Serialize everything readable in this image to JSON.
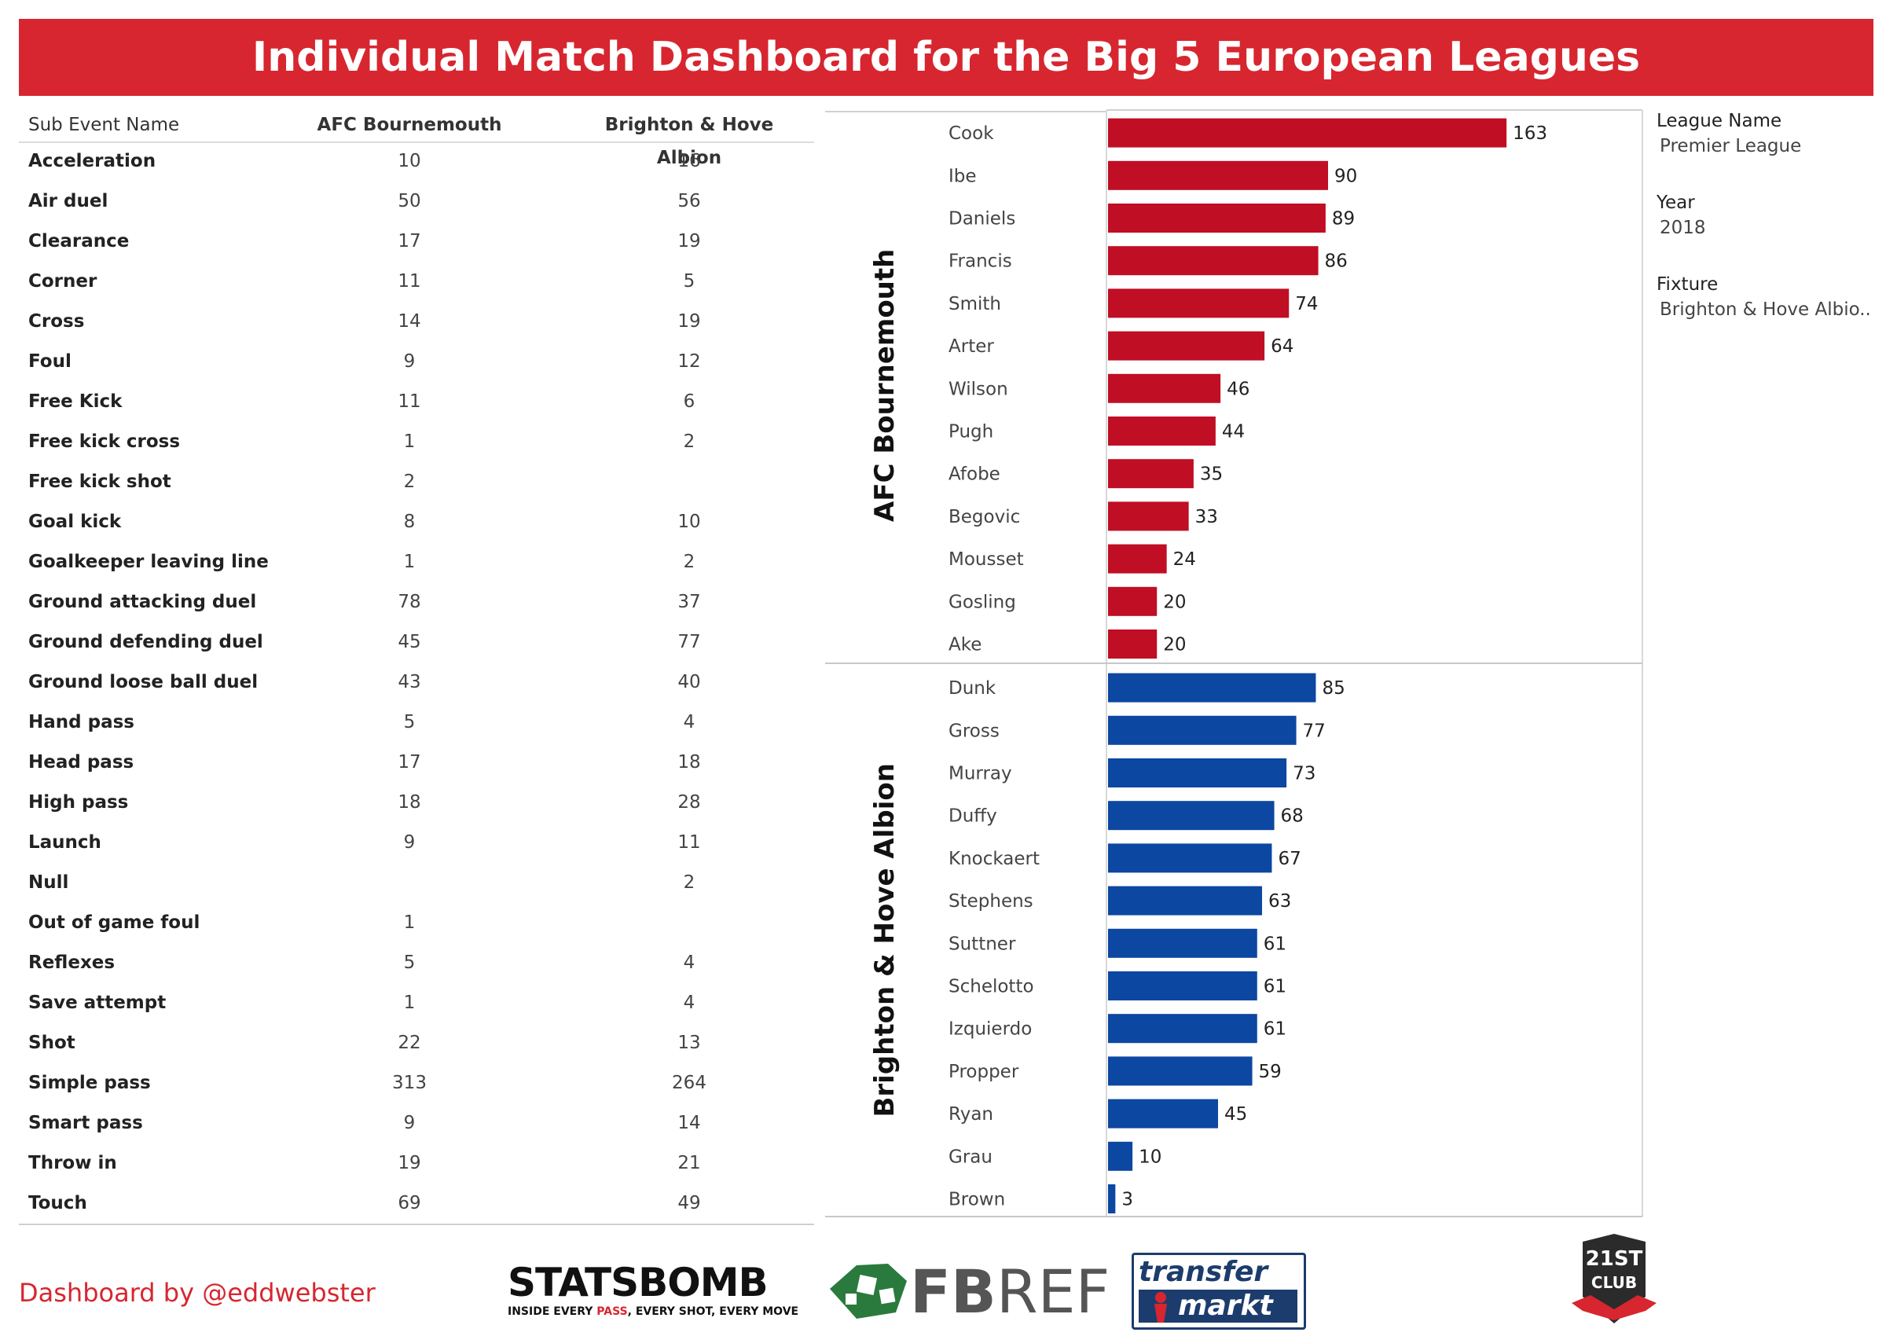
{
  "title": "Individual Match Dashboard for the Big 5 European Leagues",
  "table": {
    "header_name": "Sub Event Name",
    "team_a": "AFC Bournemouth",
    "team_b": "Brighton & Hove Albion",
    "rows": [
      {
        "name": "Acceleration",
        "a": "10",
        "b": "16"
      },
      {
        "name": "Air duel",
        "a": "50",
        "b": "56"
      },
      {
        "name": "Clearance",
        "a": "17",
        "b": "19"
      },
      {
        "name": "Corner",
        "a": "11",
        "b": "5"
      },
      {
        "name": "Cross",
        "a": "14",
        "b": "19"
      },
      {
        "name": "Foul",
        "a": "9",
        "b": "12"
      },
      {
        "name": "Free Kick",
        "a": "11",
        "b": "6"
      },
      {
        "name": "Free kick cross",
        "a": "1",
        "b": "2"
      },
      {
        "name": "Free kick shot",
        "a": "2",
        "b": ""
      },
      {
        "name": "Goal kick",
        "a": "8",
        "b": "10"
      },
      {
        "name": "Goalkeeper leaving line",
        "a": "1",
        "b": "2"
      },
      {
        "name": "Ground attacking duel",
        "a": "78",
        "b": "37"
      },
      {
        "name": "Ground defending duel",
        "a": "45",
        "b": "77"
      },
      {
        "name": "Ground loose ball duel",
        "a": "43",
        "b": "40"
      },
      {
        "name": "Hand pass",
        "a": "5",
        "b": "4"
      },
      {
        "name": "Head pass",
        "a": "17",
        "b": "18"
      },
      {
        "name": "High pass",
        "a": "18",
        "b": "28"
      },
      {
        "name": "Launch",
        "a": "9",
        "b": "11"
      },
      {
        "name": "Null",
        "a": "",
        "b": "2"
      },
      {
        "name": "Out of game foul",
        "a": "1",
        "b": ""
      },
      {
        "name": "Reflexes",
        "a": "5",
        "b": "4"
      },
      {
        "name": "Save attempt",
        "a": "1",
        "b": "4"
      },
      {
        "name": "Shot",
        "a": "22",
        "b": "13"
      },
      {
        "name": "Simple pass",
        "a": "313",
        "b": "264"
      },
      {
        "name": "Smart pass",
        "a": "9",
        "b": "14"
      },
      {
        "name": "Throw in",
        "a": "19",
        "b": "21"
      },
      {
        "name": "Touch",
        "a": "69",
        "b": "49"
      }
    ]
  },
  "chart_data": {
    "type": "bar",
    "orientation": "horizontal",
    "xlim": [
      0,
      180
    ],
    "series": [
      {
        "name": "AFC Bournemouth",
        "color": "#c00e25",
        "categories": [
          "Cook",
          "Ibe",
          "Daniels",
          "Francis",
          "Smith",
          "Arter",
          "Wilson",
          "Pugh",
          "Afobe",
          "Begovic",
          "Mousset",
          "Gosling",
          "Ake"
        ],
        "values": [
          163,
          90,
          89,
          86,
          74,
          64,
          46,
          44,
          35,
          33,
          24,
          20,
          20
        ]
      },
      {
        "name": "Brighton & Hove Albion",
        "color": "#0c47a1",
        "categories": [
          "Dunk",
          "Gross",
          "Murray",
          "Duffy",
          "Knockaert",
          "Stephens",
          "Suttner",
          "Schelotto",
          "Izquierdo",
          "Propper",
          "Ryan",
          "Grau",
          "Brown"
        ],
        "values": [
          85,
          77,
          73,
          68,
          67,
          63,
          61,
          61,
          61,
          59,
          45,
          10,
          3
        ]
      }
    ]
  },
  "filters": {
    "league_label": "League Name",
    "league_value": "Premier League",
    "year_label": "Year",
    "year_value": "2018",
    "fixture_label": "Fixture",
    "fixture_value": "Brighton & Hove Albio.."
  },
  "footer": {
    "credit": "Dashboard by @eddwebster",
    "statsbomb_name": "STATSBOMB",
    "statsbomb_tagline_1": "INSIDE EVERY ",
    "statsbomb_tagline_2": "PASS",
    "statsbomb_tagline_3": ", EVERY SHOT, EVERY MOVE",
    "fbref_a": "FB",
    "fbref_b": "REF",
    "transfermarkt_a": "transfer",
    "transfermarkt_b": "markt",
    "club21_a": "21ST",
    "club21_b": "CLUB"
  }
}
